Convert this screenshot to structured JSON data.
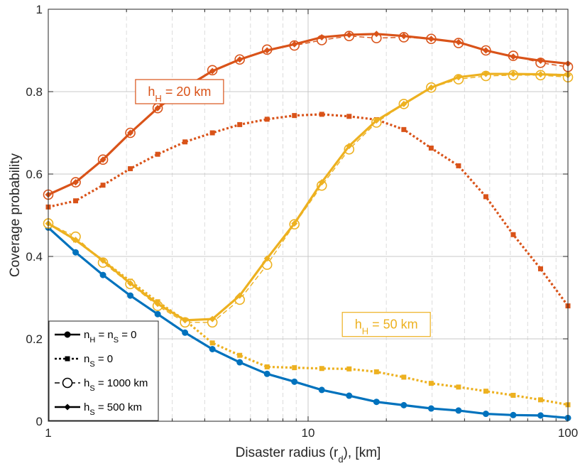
{
  "chart_data": {
    "type": "line",
    "xscale": "log",
    "xlim": [
      1,
      100
    ],
    "ylim": [
      0,
      1
    ],
    "xticks": [
      1,
      10,
      100
    ],
    "yticks": [
      0,
      0.2,
      0.4,
      0.6,
      0.8,
      1
    ],
    "xtick_labels": [
      "1",
      "10",
      "100"
    ],
    "ytick_labels": [
      "0",
      "0.2",
      "0.4",
      "0.6",
      "0.8",
      "1"
    ],
    "xlabel": {
      "main": "Disaster radius (r",
      "sub": "d",
      "tail": "), [km]"
    },
    "ylabel": "Coverage probability",
    "grid": true,
    "minor_grid": true,
    "legend_position": "bottom-left",
    "x": [
      1,
      1.2743,
      1.6238,
      2.0691,
      2.6367,
      3.3598,
      4.2813,
      5.4556,
      6.9519,
      8.8587,
      11.288,
      14.384,
      18.33,
      23.357,
      29.764,
      37.927,
      48.329,
      61.585,
      78.476,
      100
    ],
    "colors": {
      "blue": "#0072bd",
      "orange": "#d95319",
      "yellow": "#edb120"
    },
    "series": [
      {
        "group": "blue",
        "style": "solid-dot",
        "values": [
          0.47,
          0.41,
          0.355,
          0.305,
          0.26,
          0.215,
          0.175,
          0.143,
          0.115,
          0.096,
          0.076,
          0.062,
          0.047,
          0.039,
          0.031,
          0.026,
          0.018,
          0.015,
          0.014,
          0.008
        ]
      },
      {
        "group": "orange",
        "style": "dotted-square",
        "values": [
          0.52,
          0.535,
          0.573,
          0.613,
          0.648,
          0.678,
          0.7,
          0.72,
          0.733,
          0.742,
          0.745,
          0.74,
          0.732,
          0.708,
          0.663,
          0.62,
          0.545,
          0.453,
          0.37,
          0.28
        ]
      },
      {
        "group": "orange",
        "style": "dashed-circle",
        "values": [
          0.55,
          0.58,
          0.635,
          0.7,
          0.76,
          0.8,
          0.852,
          0.878,
          0.902,
          0.912,
          0.925,
          0.935,
          0.93,
          0.932,
          0.928,
          0.918,
          0.9,
          0.887,
          0.87,
          0.86
        ]
      },
      {
        "group": "orange",
        "style": "solid-diamond",
        "values": [
          0.55,
          0.58,
          0.635,
          0.7,
          0.76,
          0.81,
          0.85,
          0.878,
          0.9,
          0.915,
          0.932,
          0.938,
          0.94,
          0.935,
          0.928,
          0.92,
          0.9,
          0.885,
          0.875,
          0.868
        ]
      },
      {
        "group": "yellow",
        "style": "dotted-square",
        "values": [
          0.48,
          0.44,
          0.39,
          0.34,
          0.29,
          0.245,
          0.19,
          0.16,
          0.132,
          0.13,
          0.128,
          0.127,
          0.12,
          0.107,
          0.092,
          0.083,
          0.073,
          0.063,
          0.052,
          0.04
        ]
      },
      {
        "group": "yellow",
        "style": "dashed-circle",
        "values": [
          0.48,
          0.448,
          0.385,
          0.333,
          0.28,
          0.24,
          0.24,
          0.295,
          0.38,
          0.478,
          0.572,
          0.66,
          0.725,
          0.77,
          0.81,
          0.83,
          0.838,
          0.84,
          0.84,
          0.835
        ]
      },
      {
        "group": "yellow",
        "style": "solid-diamond",
        "values": [
          0.48,
          0.44,
          0.39,
          0.335,
          0.285,
          0.245,
          0.248,
          0.305,
          0.395,
          0.48,
          0.58,
          0.668,
          0.73,
          0.77,
          0.81,
          0.835,
          0.843,
          0.843,
          0.842,
          0.84
        ]
      }
    ],
    "legend": [
      {
        "style": "solid-dot",
        "pre": "n",
        "sub1": "H",
        "mid": " = n",
        "sub2": "S",
        "post": " = 0"
      },
      {
        "style": "dotted-square",
        "pre": "n",
        "sub1": "S",
        "mid": " = 0",
        "sub2": "",
        "post": ""
      },
      {
        "style": "dashed-circle",
        "pre": "h",
        "sub1": "S",
        "mid": " = 1000 km",
        "sub2": "",
        "post": ""
      },
      {
        "style": "solid-diamond",
        "pre": "h",
        "sub1": "S",
        "mid": " = 500 km",
        "sub2": "",
        "post": ""
      }
    ],
    "annotations": [
      {
        "group": "orange",
        "pre": "h",
        "sub": "H",
        "post": " = 20 km",
        "x": 3.2,
        "y": 0.8
      },
      {
        "group": "yellow",
        "pre": "h",
        "sub": "H",
        "post": " = 50 km",
        "x": 20,
        "y": 0.235
      }
    ]
  }
}
